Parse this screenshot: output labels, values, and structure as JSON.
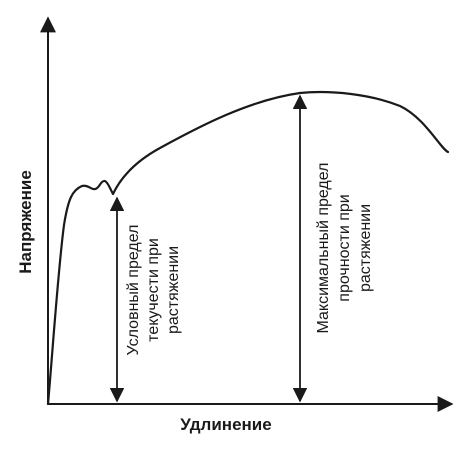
{
  "diagram": {
    "y_axis_label": "Напряжение",
    "x_axis_label": "Удлинение",
    "yield_strength_label": {
      "line1": "Условный предел",
      "line2": "текучести при",
      "line3": "растяжении"
    },
    "ultimate_strength_label": {
      "line1": "Максимальный предел",
      "line2": "прочности при",
      "line3": "растяжении"
    },
    "colors": {
      "ink": "#1a1a1a",
      "background": "#ffffff"
    }
  }
}
